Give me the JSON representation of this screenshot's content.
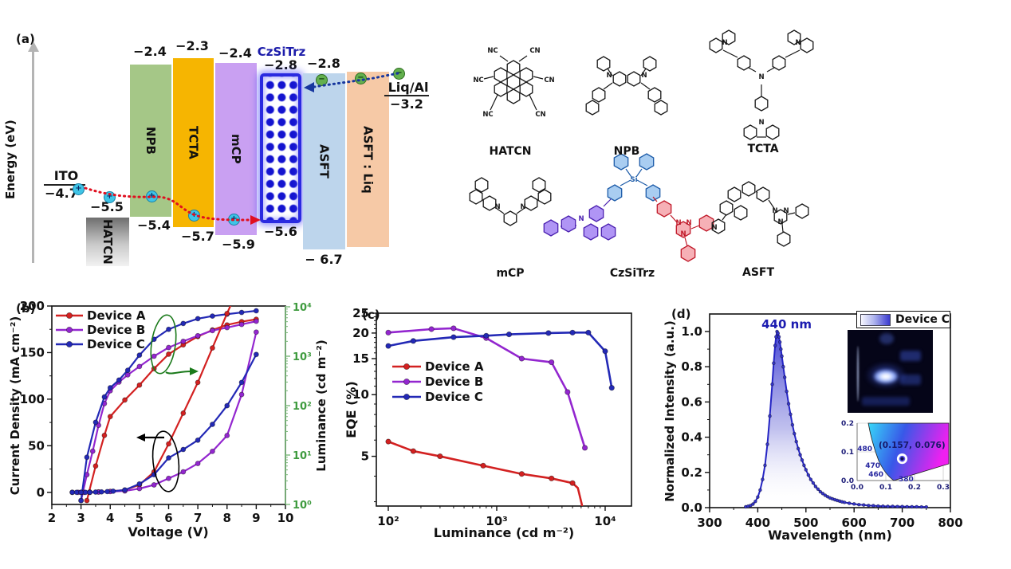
{
  "panel_a": {
    "label": "(a)",
    "axis_label": "Energy (eV)",
    "ito": {
      "name": "ITO",
      "level": "−4.7"
    },
    "hatcn": {
      "name": "HATCN",
      "level": "−5.5"
    },
    "liqal": {
      "name": "Liq/Al",
      "level": "−3.2"
    },
    "layers": [
      {
        "name": "NPB",
        "lumo": "−2.4",
        "homo": "−5.4"
      },
      {
        "name": "TCTA",
        "lumo": "−2.3",
        "homo": "−5.7"
      },
      {
        "name": "mCP",
        "lumo": "−2.4",
        "homo": "−5.9"
      },
      {
        "name": "CzSiTrz",
        "lumo": "−2.8",
        "homo": "−5.6"
      },
      {
        "name": "ASFT",
        "lumo": "−2.8",
        "homo": "− 6.7"
      },
      {
        "name": "ASFT : Liq"
      }
    ],
    "molecules": [
      {
        "label": "HATCN"
      },
      {
        "label": "NPB"
      },
      {
        "label": "TCTA"
      },
      {
        "label": "mCP"
      },
      {
        "label": "CzSiTrz"
      },
      {
        "label": "ASFT"
      }
    ]
  },
  "colors": {
    "device_a": "#d32121",
    "device_b": "#9326cf",
    "device_c": "#2329b6",
    "luminance_axis_line": "#79b879",
    "luminance_axis_text": "#3f9b3f",
    "annotation_green": "#1b7a1b",
    "annotation_black": "#000000",
    "spectrum": "#2424c4",
    "cie_text": "#1c1c78"
  },
  "chart_data": [
    {
      "id": "jvl",
      "type": "line",
      "panel_label": "(b)",
      "xlabel": "Voltage (V)",
      "ylabel_left": "Current Density (mA cm⁻²)",
      "ylabel_right": "Luminance (cd m⁻²)",
      "x_range": [
        2,
        10
      ],
      "x_ticks": [
        2,
        3,
        4,
        5,
        6,
        7,
        8,
        9,
        10
      ],
      "yl_range": [
        -13,
        200
      ],
      "yl_ticks": [
        0,
        50,
        100,
        150,
        200
      ],
      "yr_tick_labels": [
        "10⁰",
        "10¹",
        "10²",
        "10³",
        "10⁴"
      ],
      "legend": [
        {
          "label": "Device A",
          "color": "#d32121"
        },
        {
          "label": "Device B",
          "color": "#9326cf"
        },
        {
          "label": "Device C",
          "color": "#2329b6"
        }
      ],
      "series": [
        {
          "name": "Device A",
          "quantity": "luminance",
          "color": "#d32121",
          "points": [
            [
              3.2,
              1.2
            ],
            [
              3.5,
              6
            ],
            [
              3.8,
              25
            ],
            [
              4.0,
              60
            ],
            [
              4.5,
              130
            ],
            [
              5.0,
              260
            ],
            [
              5.5,
              560
            ],
            [
              6.0,
              1100
            ],
            [
              6.5,
              1700
            ],
            [
              7.0,
              2500
            ],
            [
              7.5,
              3400
            ],
            [
              8.0,
              4300
            ],
            [
              8.5,
              5000
            ],
            [
              9.0,
              5600
            ]
          ]
        },
        {
          "name": "Device B",
          "quantity": "luminance",
          "color": "#9326cf",
          "points": [
            [
              3.0,
              1.2
            ],
            [
              3.2,
              4
            ],
            [
              3.4,
              12
            ],
            [
              3.6,
              40
            ],
            [
              3.8,
              110
            ],
            [
              4.0,
              200
            ],
            [
              4.3,
              300
            ],
            [
              4.6,
              420
            ],
            [
              5.0,
              620
            ],
            [
              5.5,
              1000
            ],
            [
              6.0,
              1500
            ],
            [
              6.5,
              2000
            ],
            [
              7.0,
              2600
            ],
            [
              7.5,
              3300
            ],
            [
              8.0,
              3800
            ],
            [
              8.5,
              4400
            ],
            [
              9.0,
              5100
            ]
          ]
        },
        {
          "name": "Device C",
          "quantity": "luminance",
          "color": "#2329b6",
          "points": [
            [
              3.0,
              1.2
            ],
            [
              3.2,
              9
            ],
            [
              3.5,
              46
            ],
            [
              3.8,
              150
            ],
            [
              4.0,
              230
            ],
            [
              4.3,
              330
            ],
            [
              4.6,
              520
            ],
            [
              5.0,
              1050
            ],
            [
              5.5,
              2200
            ],
            [
              6.0,
              3500
            ],
            [
              6.5,
              4600
            ],
            [
              7.0,
              5750
            ],
            [
              7.5,
              6500
            ],
            [
              8.0,
              7100
            ],
            [
              8.5,
              7700
            ],
            [
              9.0,
              8300
            ]
          ]
        },
        {
          "name": "Device A",
          "quantity": "current_density",
          "color": "#d32121",
          "points": [
            [
              2.7,
              0
            ],
            [
              3.0,
              0
            ],
            [
              3.3,
              0.3
            ],
            [
              3.6,
              0.5
            ],
            [
              4.0,
              1
            ],
            [
              4.5,
              2.5
            ],
            [
              5.0,
              8
            ],
            [
              5.5,
              22
            ],
            [
              6.0,
              52
            ],
            [
              6.5,
              85
            ],
            [
              7.0,
              118
            ],
            [
              7.5,
              155
            ],
            [
              8.0,
              192
            ],
            [
              8.2,
              206
            ]
          ]
        },
        {
          "name": "Device B",
          "quantity": "current_density",
          "color": "#9326cf",
          "points": [
            [
              2.9,
              0
            ],
            [
              3.1,
              0
            ],
            [
              3.3,
              0
            ],
            [
              3.6,
              0.3
            ],
            [
              4.0,
              0.8
            ],
            [
              4.5,
              1.5
            ],
            [
              5.0,
              4
            ],
            [
              5.5,
              8
            ],
            [
              6.0,
              15
            ],
            [
              6.5,
              22
            ],
            [
              7.0,
              31
            ],
            [
              7.5,
              44
            ],
            [
              8.0,
              61
            ],
            [
              8.5,
              105
            ],
            [
              9.0,
              172
            ]
          ]
        },
        {
          "name": "Device C",
          "quantity": "current_density",
          "color": "#2329b6",
          "points": [
            [
              2.7,
              0
            ],
            [
              2.85,
              0
            ],
            [
              3.0,
              0
            ],
            [
              3.15,
              0
            ],
            [
              3.3,
              0
            ],
            [
              3.5,
              0.3
            ],
            [
              3.7,
              0.5
            ],
            [
              3.9,
              0.8
            ],
            [
              4.1,
              1.2
            ],
            [
              4.5,
              2.5
            ],
            [
              5.0,
              9
            ],
            [
              5.5,
              19
            ],
            [
              6.0,
              37
            ],
            [
              6.5,
              46
            ],
            [
              7.0,
              56
            ],
            [
              7.5,
              73
            ],
            [
              8.0,
              93
            ],
            [
              8.5,
              118
            ],
            [
              9.0,
              148
            ]
          ]
        }
      ]
    },
    {
      "id": "eqe",
      "type": "line",
      "panel_label": "(c)",
      "xlabel": "Luminance (cd m⁻²)",
      "ylabel": "EQE (%)",
      "x_tick_labels": [
        "10²",
        "10³",
        "10⁴"
      ],
      "y_ticks": [
        5,
        10,
        15,
        20,
        25
      ],
      "legend": [
        {
          "label": "Device A",
          "color": "#d32121"
        },
        {
          "label": "Device B",
          "color": "#9326cf"
        },
        {
          "label": "Device C",
          "color": "#2329b6"
        }
      ],
      "series": [
        {
          "name": "Device A",
          "color": "#d32121",
          "points": [
            [
              100,
              5.9
            ],
            [
              170,
              5.3
            ],
            [
              300,
              5.0
            ],
            [
              750,
              4.5
            ],
            [
              1700,
              4.1
            ],
            [
              3200,
              3.9
            ],
            [
              5000,
              3.7
            ]
          ],
          "tail": [
            [
              5600,
              3.5
            ],
            [
              6100,
              2.9
            ],
            [
              6500,
              2.2
            ],
            [
              6700,
              1.5
            ]
          ]
        },
        {
          "name": "Device B",
          "color": "#9326cf",
          "points": [
            [
              100,
              20.1
            ],
            [
              250,
              20.9
            ],
            [
              400,
              21.1
            ],
            [
              800,
              18.9
            ],
            [
              1700,
              15.0
            ],
            [
              3200,
              14.4
            ],
            [
              4500,
              10.3
            ],
            [
              6500,
              5.5
            ]
          ]
        },
        {
          "name": "Device C",
          "color": "#2329b6",
          "points": [
            [
              100,
              17.3
            ],
            [
              170,
              18.3
            ],
            [
              400,
              19.1
            ],
            [
              800,
              19.4
            ],
            [
              1300,
              19.7
            ],
            [
              3000,
              20.0
            ],
            [
              5000,
              20.1
            ],
            [
              7000,
              20.1
            ],
            [
              10000,
              16.3
            ],
            [
              11500,
              10.8
            ]
          ]
        }
      ]
    },
    {
      "id": "el",
      "type": "area",
      "panel_label": "(d)",
      "xlabel": "Wavelength (nm)",
      "ylabel": "Normalized Intensity (a.u.)",
      "x_ticks": [
        300,
        400,
        500,
        600,
        700,
        800
      ],
      "y_ticks": [
        0.0,
        0.2,
        0.4,
        0.6,
        0.8,
        1.0
      ],
      "peak_label": "440 nm",
      "legend_label": "Device C",
      "color": "#2424c4",
      "points": [
        [
          375,
          0.005
        ],
        [
          380,
          0.008
        ],
        [
          385,
          0.012
        ],
        [
          390,
          0.02
        ],
        [
          395,
          0.035
        ],
        [
          400,
          0.06
        ],
        [
          405,
          0.1
        ],
        [
          410,
          0.16
        ],
        [
          415,
          0.24
        ],
        [
          420,
          0.36
        ],
        [
          425,
          0.52
        ],
        [
          430,
          0.7
        ],
        [
          433,
          0.82
        ],
        [
          436,
          0.92
        ],
        [
          438,
          0.97
        ],
        [
          440,
          1.0
        ],
        [
          442,
          0.99
        ],
        [
          444,
          0.97
        ],
        [
          446,
          0.94
        ],
        [
          448,
          0.9
        ],
        [
          450,
          0.86
        ],
        [
          453,
          0.8
        ],
        [
          456,
          0.74
        ],
        [
          460,
          0.66
        ],
        [
          464,
          0.59
        ],
        [
          468,
          0.53
        ],
        [
          472,
          0.47
        ],
        [
          476,
          0.42
        ],
        [
          480,
          0.375
        ],
        [
          484,
          0.335
        ],
        [
          488,
          0.3
        ],
        [
          492,
          0.27
        ],
        [
          496,
          0.24
        ],
        [
          500,
          0.215
        ],
        [
          505,
          0.185
        ],
        [
          510,
          0.16
        ],
        [
          515,
          0.14
        ],
        [
          520,
          0.12
        ],
        [
          525,
          0.105
        ],
        [
          530,
          0.09
        ],
        [
          535,
          0.08
        ],
        [
          540,
          0.07
        ],
        [
          545,
          0.062
        ],
        [
          550,
          0.055
        ],
        [
          555,
          0.05
        ],
        [
          560,
          0.045
        ],
        [
          565,
          0.041
        ],
        [
          570,
          0.037
        ],
        [
          575,
          0.033
        ],
        [
          580,
          0.03
        ],
        [
          590,
          0.025
        ],
        [
          600,
          0.021
        ],
        [
          610,
          0.017
        ],
        [
          620,
          0.015
        ],
        [
          630,
          0.012
        ],
        [
          640,
          0.011
        ],
        [
          650,
          0.009
        ],
        [
          660,
          0.008
        ],
        [
          670,
          0.007
        ],
        [
          680,
          0.007
        ],
        [
          690,
          0.006
        ],
        [
          700,
          0.006
        ],
        [
          710,
          0.005
        ],
        [
          720,
          0.005
        ],
        [
          730,
          0.005
        ],
        [
          740,
          0.004
        ],
        [
          750,
          0.004
        ]
      ],
      "cie": {
        "x_ticks": [
          "0.0",
          "0.1",
          "0.2",
          "0.3"
        ],
        "y_ticks": [
          "0.0",
          "0.1",
          "0.2"
        ],
        "locus_labels": [
          "480",
          "470",
          "460",
          "380"
        ],
        "point": [
          0.157,
          0.076
        ],
        "point_label": "(0.157, 0.076)"
      }
    }
  ]
}
